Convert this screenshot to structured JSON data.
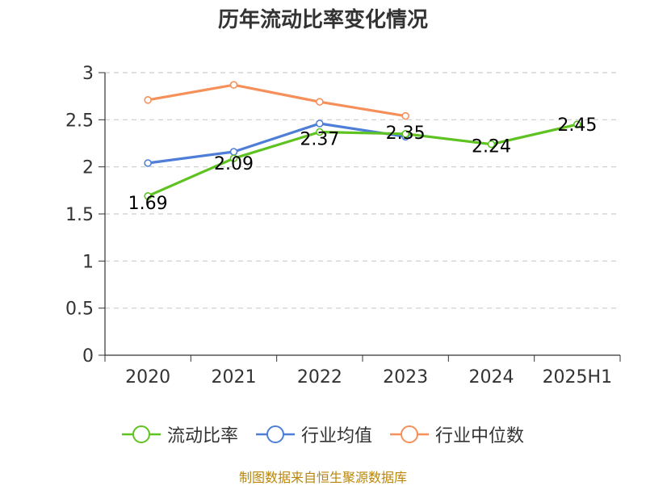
{
  "chart_data": {
    "type": "line",
    "title": "历年流动比率变化情况",
    "categories": [
      "2020",
      "2021",
      "2022",
      "2023",
      "2024",
      "2025H1"
    ],
    "ylim": [
      0,
      3
    ],
    "yticks": [
      "0",
      "0.5",
      "1",
      "1.5",
      "2",
      "2.5",
      "3"
    ],
    "grid": true,
    "legend_position": "bottom",
    "series": [
      {
        "name": "流动比率",
        "color": "#5ec221",
        "values": [
          1.69,
          2.09,
          2.37,
          2.35,
          2.24,
          2.45
        ],
        "labels": [
          "1.69",
          "2.09",
          "2.37",
          "2.35",
          "2.24",
          "2.45"
        ]
      },
      {
        "name": "行业均值",
        "color": "#4e7ed8",
        "values": [
          2.04,
          2.16,
          2.46,
          2.32,
          null,
          null
        ]
      },
      {
        "name": "行业中位数",
        "color": "#f5905a",
        "values": [
          2.71,
          2.87,
          2.69,
          2.54,
          null,
          null
        ]
      }
    ]
  },
  "source_note": "制图数据来自恒生聚源数据库"
}
